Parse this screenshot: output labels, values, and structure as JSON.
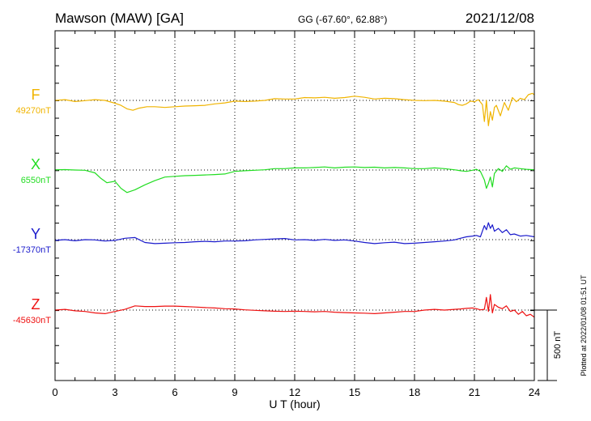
{
  "header": {
    "station": "Mawson (MAW)  [GA]",
    "coords": "GG (-67.60°,  62.88°)",
    "date": "2021/12/08"
  },
  "footer": {
    "plotted": "Plotted at 2022/01/08 01:51  UT"
  },
  "chart_data": {
    "type": "line",
    "xlabel": "U T (hour)",
    "xlim": [
      0,
      24
    ],
    "xticks": [
      "0",
      "3",
      "6",
      "9",
      "12",
      "15",
      "18",
      "21",
      "24"
    ],
    "grid": true,
    "scale_bar_label": "500 nT",
    "series": [
      {
        "name": "F",
        "baseline_label": "49270nT",
        "color": "#f0b400",
        "baseline": 49270,
        "x": [
          0,
          0.5,
          1,
          1.5,
          2,
          2.5,
          3,
          3.3,
          3.6,
          3.9,
          4.2,
          4.6,
          5,
          5.5,
          6,
          6.5,
          7,
          7.5,
          8,
          8.5,
          9,
          9.5,
          10,
          10.5,
          11,
          11.5,
          12,
          12.5,
          13,
          13.5,
          14,
          14.5,
          15,
          15.5,
          16,
          16.5,
          17,
          17.5,
          18,
          18.5,
          19,
          19.5,
          20,
          20.2,
          20.4,
          20.6,
          20.8,
          21,
          21.2,
          21.4,
          21.5,
          21.6,
          21.7,
          21.8,
          21.9,
          22,
          22.1,
          22.3,
          22.5,
          22.7,
          22.9,
          23.1,
          23.3,
          23.5,
          23.7,
          23.9,
          24
        ],
        "values": [
          49270,
          49275,
          49262,
          49268,
          49275,
          49270,
          49250,
          49235,
          49210,
          49200,
          49215,
          49225,
          49225,
          49220,
          49225,
          49230,
          49232,
          49235,
          49245,
          49252,
          49265,
          49262,
          49265,
          49270,
          49282,
          49280,
          49280,
          49290,
          49288,
          49292,
          49285,
          49290,
          49300,
          49292,
          49280,
          49285,
          49282,
          49275,
          49270,
          49268,
          49270,
          49265,
          49255,
          49240,
          49235,
          49245,
          49265,
          49260,
          49275,
          49240,
          49120,
          49270,
          49090,
          49190,
          49130,
          49220,
          49235,
          49160,
          49255,
          49200,
          49290,
          49260,
          49285,
          49275,
          49310,
          49320,
          49310
        ]
      },
      {
        "name": "X",
        "baseline_label": "6550nT",
        "color": "#22dd22",
        "baseline": 6550,
        "x": [
          0,
          0.5,
          1,
          1.5,
          2,
          2.3,
          2.6,
          3,
          3.3,
          3.6,
          4,
          4.5,
          5,
          5.5,
          6,
          6.5,
          7,
          7.5,
          8,
          8.5,
          9,
          9.5,
          10,
          10.5,
          11,
          11.5,
          12,
          12.5,
          13,
          13.5,
          14,
          14.5,
          15,
          15.5,
          16,
          16.5,
          17,
          17.5,
          18,
          18.5,
          19,
          19.5,
          20,
          20.3,
          20.6,
          20.9,
          21.1,
          21.3,
          21.5,
          21.6,
          21.7,
          21.8,
          21.9,
          22,
          22.2,
          22.4,
          22.6,
          22.8,
          23,
          23.3,
          23.6,
          24
        ],
        "values": [
          6552,
          6553,
          6550,
          6548,
          6530,
          6490,
          6460,
          6470,
          6420,
          6390,
          6410,
          6445,
          6475,
          6500,
          6505,
          6510,
          6512,
          6515,
          6518,
          6522,
          6540,
          6545,
          6548,
          6552,
          6560,
          6560,
          6565,
          6565,
          6568,
          6572,
          6565,
          6570,
          6572,
          6568,
          6570,
          6565,
          6568,
          6565,
          6560,
          6560,
          6565,
          6560,
          6552,
          6545,
          6540,
          6548,
          6555,
          6540,
          6480,
          6420,
          6455,
          6500,
          6430,
          6525,
          6560,
          6540,
          6580,
          6555,
          6565,
          6560,
          6555,
          6552
        ]
      },
      {
        "name": "Y",
        "baseline_label": "-17370nT",
        "color": "#1a1acc",
        "baseline": -17370,
        "x": [
          0,
          0.5,
          1,
          1.5,
          2,
          2.5,
          3,
          3.5,
          4,
          4.5,
          5,
          5.5,
          6,
          6.5,
          7,
          7.5,
          8,
          8.5,
          9,
          9.5,
          10,
          10.5,
          11,
          11.5,
          12,
          12.5,
          13,
          13.5,
          14,
          14.5,
          15,
          15.5,
          16,
          16.5,
          17,
          17.5,
          18,
          18.5,
          19,
          19.5,
          20,
          20.3,
          20.6,
          20.9,
          21.1,
          21.3,
          21.5,
          21.6,
          21.7,
          21.8,
          21.9,
          22,
          22.2,
          22.4,
          22.6,
          22.8,
          23,
          23.3,
          23.6,
          24
        ],
        "values": [
          -17375,
          -17370,
          -17378,
          -17370,
          -17372,
          -17380,
          -17375,
          -17360,
          -17355,
          -17390,
          -17398,
          -17395,
          -17392,
          -17390,
          -17385,
          -17382,
          -17385,
          -17380,
          -17380,
          -17378,
          -17372,
          -17368,
          -17365,
          -17362,
          -17372,
          -17370,
          -17375,
          -17368,
          -17375,
          -17372,
          -17380,
          -17390,
          -17398,
          -17392,
          -17388,
          -17398,
          -17395,
          -17390,
          -17385,
          -17380,
          -17372,
          -17360,
          -17350,
          -17345,
          -17340,
          -17350,
          -17270,
          -17300,
          -17250,
          -17290,
          -17265,
          -17310,
          -17290,
          -17320,
          -17300,
          -17335,
          -17330,
          -17345,
          -17340,
          -17350
        ]
      },
      {
        "name": "Z",
        "baseline_label": "-45630nT",
        "color": "#ee1111",
        "baseline": -45630,
        "x": [
          0,
          0.5,
          1,
          1.5,
          2,
          2.5,
          3,
          3.5,
          4,
          4.5,
          5,
          5.5,
          6,
          6.5,
          7,
          7.5,
          8,
          8.5,
          9,
          9.5,
          10,
          10.5,
          11,
          11.5,
          12,
          12.5,
          13,
          13.5,
          14,
          14.5,
          15,
          15.5,
          16,
          16.5,
          17,
          17.5,
          18,
          18.5,
          19,
          19.5,
          20,
          20.3,
          20.6,
          20.9,
          21.1,
          21.3,
          21.5,
          21.6,
          21.7,
          21.8,
          21.9,
          22,
          22.2,
          22.4,
          22.6,
          22.8,
          23,
          23.2,
          23.4,
          23.6,
          23.8,
          24
        ],
        "values": [
          -45630,
          -45625,
          -45635,
          -45640,
          -45650,
          -45655,
          -45640,
          -45625,
          -45600,
          -45605,
          -45605,
          -45602,
          -45602,
          -45605,
          -45608,
          -45612,
          -45615,
          -45620,
          -45622,
          -45628,
          -45632,
          -45635,
          -45638,
          -45640,
          -45638,
          -45640,
          -45642,
          -45640,
          -45645,
          -45648,
          -45650,
          -45652,
          -45655,
          -45650,
          -45645,
          -45640,
          -45640,
          -45630,
          -45625,
          -45630,
          -45625,
          -45622,
          -45618,
          -45615,
          -45620,
          -45628,
          -45625,
          -45540,
          -45640,
          -45520,
          -45650,
          -45590,
          -45610,
          -45620,
          -45600,
          -45640,
          -45630,
          -45660,
          -45640,
          -45670,
          -45660,
          -45680
        ]
      }
    ]
  }
}
